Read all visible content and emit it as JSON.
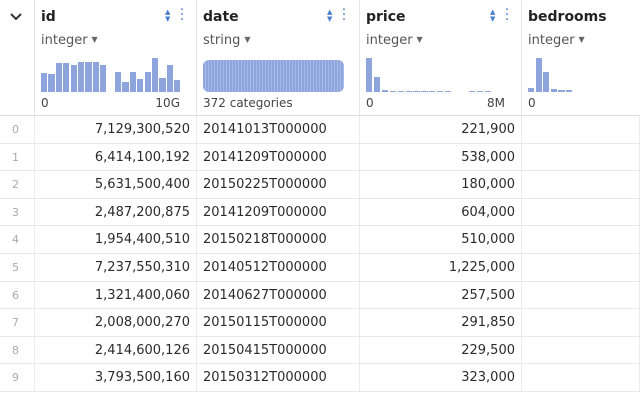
{
  "corner": {
    "chevron": "❯"
  },
  "columns": [
    {
      "name": "id",
      "type": "integer",
      "range_low": "0",
      "range_high": "10G",
      "histogram": [
        0.55,
        0.52,
        0.85,
        0.85,
        0.78,
        0.88,
        0.88,
        0.88,
        0.78,
        0.0,
        0.6,
        0.28,
        0.58,
        0.38,
        0.58,
        1.0,
        0.42,
        0.8,
        0.35
      ]
    },
    {
      "name": "date",
      "type": "string",
      "categories_label": "372 categories"
    },
    {
      "name": "price",
      "type": "integer",
      "range_low": "0",
      "range_high": "8M",
      "histogram": [
        1.0,
        0.45,
        0.05,
        0.04,
        0.04,
        0.04,
        0.04,
        0.04,
        0.04,
        0.04,
        0.03,
        0.0,
        0.0,
        0.03,
        0.03,
        0.03
      ]
    },
    {
      "name": "bedrooms",
      "type": "integer",
      "range_low": "0",
      "histogram": [
        0.12,
        1.0,
        0.6,
        0.1,
        0.05,
        0.05
      ]
    }
  ],
  "rows": [
    {
      "index": "0",
      "id": "7,129,300,520",
      "date": "20141013T000000",
      "price": "221,900"
    },
    {
      "index": "1",
      "id": "6,414,100,192",
      "date": "20141209T000000",
      "price": "538,000"
    },
    {
      "index": "2",
      "id": "5,631,500,400",
      "date": "20150225T000000",
      "price": "180,000"
    },
    {
      "index": "3",
      "id": "2,487,200,875",
      "date": "20141209T000000",
      "price": "604,000"
    },
    {
      "index": "4",
      "id": "1,954,400,510",
      "date": "20150218T000000",
      "price": "510,000"
    },
    {
      "index": "5",
      "id": "7,237,550,310",
      "date": "20140512T000000",
      "price": "1,225,000"
    },
    {
      "index": "6",
      "id": "1,321,400,060",
      "date": "20140627T000000",
      "price": "257,500"
    },
    {
      "index": "7",
      "id": "2,008,000,270",
      "date": "20150115T000000",
      "price": "291,850"
    },
    {
      "index": "8",
      "id": "2,414,600,126",
      "date": "20150415T000000",
      "price": "229,500"
    },
    {
      "index": "9",
      "id": "3,793,500,160",
      "date": "20150312T000000",
      "price": "323,000"
    }
  ],
  "colors": {
    "accent": "#4a7fd0",
    "histogram": "#8da4dc"
  }
}
